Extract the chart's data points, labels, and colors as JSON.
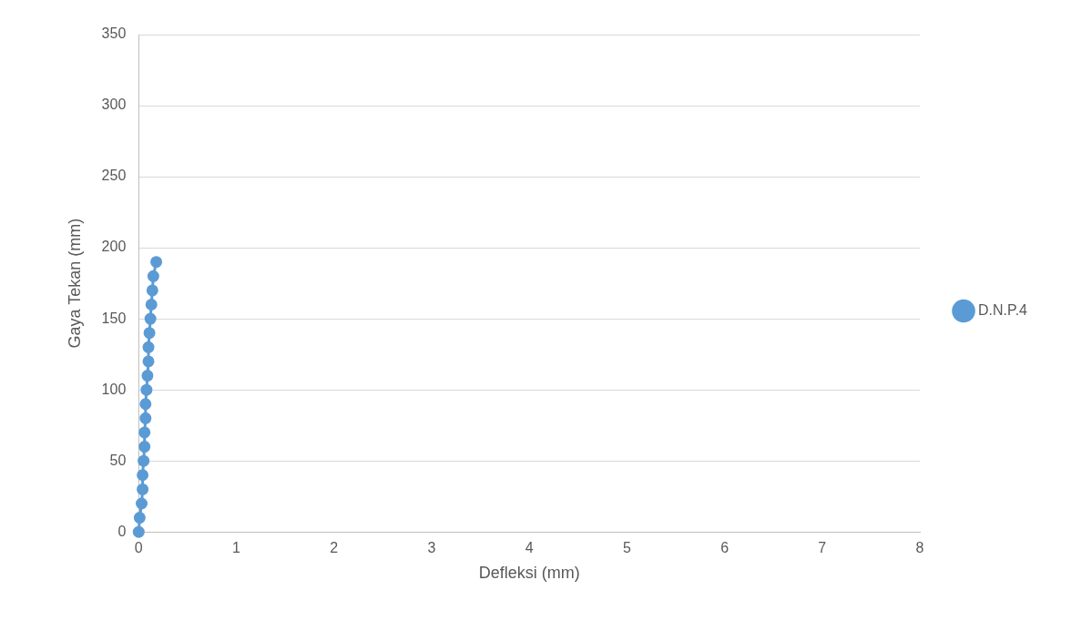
{
  "chart_data": {
    "type": "line",
    "xlabel": "Defleksi (mm)",
    "ylabel": "Gaya Tekan (mm)",
    "xlim": [
      0,
      8
    ],
    "xticks": [
      0,
      1,
      2,
      3,
      4,
      5,
      6,
      7,
      8
    ],
    "ylim": [
      0,
      350
    ],
    "yticks": [
      0,
      50,
      100,
      150,
      200,
      250,
      300,
      350
    ],
    "grid": "y",
    "legend": "right",
    "marker": "circle",
    "series": [
      {
        "name": "D.N.P.4",
        "color": "#5b9bd5",
        "x": [
          0,
          0.01,
          0.03,
          0.04,
          0.04,
          0.05,
          0.06,
          0.06,
          0.07,
          0.07,
          0.08,
          0.09,
          0.1,
          0.1,
          0.11,
          0.12,
          0.13,
          0.14,
          0.15,
          0.18
        ],
        "values": [
          0,
          10,
          20,
          30,
          40,
          50,
          60,
          70,
          80,
          90,
          100,
          110,
          120,
          130,
          140,
          150,
          160,
          170,
          180,
          190
        ]
      }
    ]
  }
}
